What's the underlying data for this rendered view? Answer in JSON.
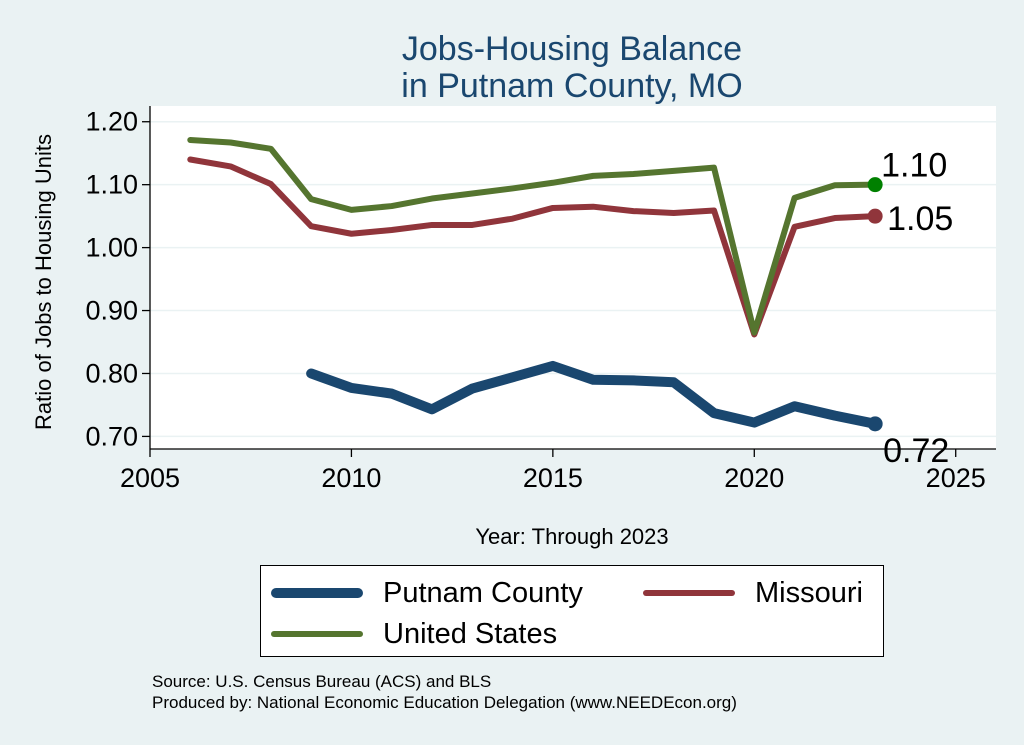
{
  "title_line1": "Jobs-Housing Balance",
  "title_line2": "in Putnam County, MO",
  "source_line1": "Source: U.S. Census Bureau (ACS) and BLS",
  "source_line2": "Produced by: National Economic Education Delegation (www.NEEDEcon.org)",
  "colors": {
    "background": "#eaf2f3",
    "plot": "#ffffff",
    "title": "#1a476f"
  },
  "chart_data": {
    "type": "line",
    "xlabel": "Year: Through 2023",
    "ylabel": "Ratio of Jobs to Housing Units",
    "xlim": [
      2005,
      2026
    ],
    "ylim": [
      0.68,
      1.225
    ],
    "xticks": [
      2005,
      2010,
      2015,
      2020,
      2025
    ],
    "yticks": [
      0.7,
      0.8,
      0.9,
      1.0,
      1.1,
      1.2
    ],
    "grid": true,
    "legend_position": "bottom",
    "series": [
      {
        "name": "Putnam County",
        "color": "#1a476f",
        "x": [
          2009,
          2010,
          2011,
          2012,
          2013,
          2014,
          2015,
          2016,
          2017,
          2018,
          2019,
          2020,
          2021,
          2022,
          2023
        ],
        "values": [
          0.8,
          0.777,
          0.768,
          0.743,
          0.776,
          0.794,
          0.812,
          0.79,
          0.789,
          0.786,
          0.737,
          0.722,
          0.748,
          0.733,
          0.72
        ],
        "end_label": "0.72"
      },
      {
        "name": "Missouri",
        "color": "#90353b",
        "x": [
          2006,
          2007,
          2008,
          2009,
          2010,
          2011,
          2012,
          2013,
          2014,
          2015,
          2016,
          2017,
          2018,
          2019,
          2020,
          2021,
          2022,
          2023
        ],
        "values": [
          1.14,
          1.129,
          1.101,
          1.034,
          1.022,
          1.028,
          1.036,
          1.036,
          1.046,
          1.063,
          1.065,
          1.058,
          1.055,
          1.059,
          0.862,
          1.033,
          1.047,
          1.05
        ],
        "end_label": "1.05"
      },
      {
        "name": "United States",
        "color": "#55752f",
        "x": [
          2006,
          2007,
          2008,
          2009,
          2010,
          2011,
          2012,
          2013,
          2014,
          2015,
          2016,
          2017,
          2018,
          2019,
          2020,
          2021,
          2022,
          2023
        ],
        "values": [
          1.171,
          1.167,
          1.157,
          1.077,
          1.06,
          1.066,
          1.078,
          1.086,
          1.094,
          1.103,
          1.114,
          1.117,
          1.122,
          1.127,
          0.865,
          1.079,
          1.099,
          1.1
        ],
        "end_label": "1.10"
      }
    ]
  }
}
